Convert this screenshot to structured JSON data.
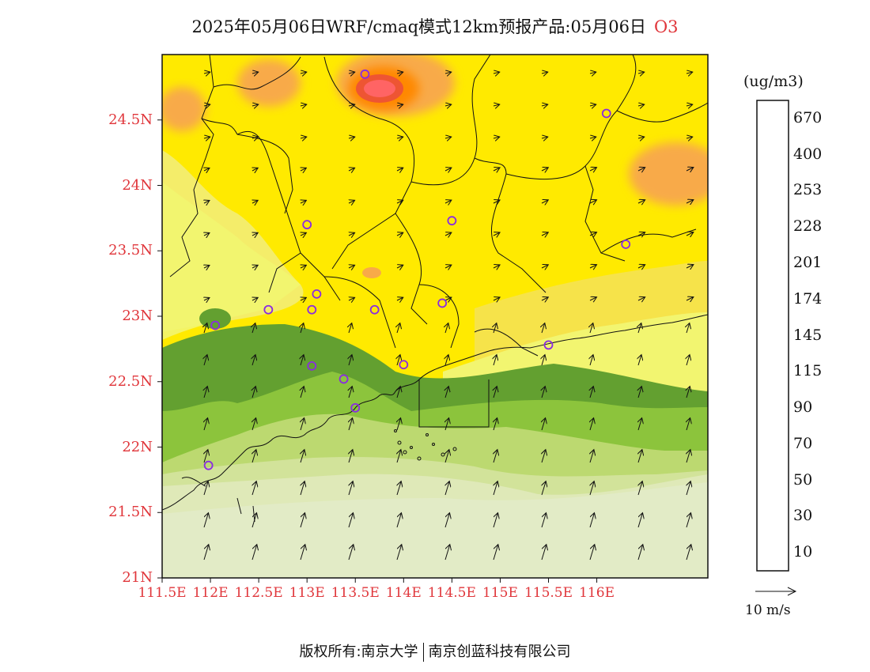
{
  "title": {
    "text": "2025年05月06日WRF/cmaq模式12km预报产品:05月06日",
    "pollutant": "O3"
  },
  "axes": {
    "lat_labels": [
      "24.5N",
      "24N",
      "23.5N",
      "23N",
      "22.5N",
      "22N",
      "21.5N",
      "21N"
    ],
    "lat_values": [
      24.5,
      24.0,
      23.5,
      23.0,
      22.5,
      22.0,
      21.5,
      21.0
    ],
    "lon_labels": [
      "111.5E",
      "112E",
      "112.5E",
      "113E",
      "113.5E",
      "114E",
      "114.5E",
      "115E",
      "115.5E",
      "116E"
    ],
    "lon_values": [
      111.5,
      112.0,
      112.5,
      113.0,
      113.5,
      114.0,
      114.5,
      115.0,
      115.5,
      116.0
    ],
    "lon_range": [
      111.5,
      117.15
    ],
    "lat_range": [
      21.0,
      25.0
    ]
  },
  "colorbar": {
    "unit": "(ug/m3)",
    "labels": [
      "670",
      "400",
      "253",
      "228",
      "201",
      "174",
      "145",
      "115",
      "90",
      "70",
      "50",
      "30",
      "10"
    ],
    "colors": [
      "#7b2fd6",
      "#9a35c9",
      "#b03060",
      "#c8187a",
      "#ff0000",
      "#ee1144",
      "#f8283c",
      "#ff6464",
      "#ee5533",
      "#ff8800",
      "#ffb030",
      "#f8aa48",
      "#fde000",
      "#fff000",
      "#f6e34a",
      "#f2f570",
      "#63a030",
      "#8cc43c",
      "#bcd970",
      "#d2e39a",
      "#dfe9b8",
      "#4a8fc6",
      "#6cb2e0",
      "#a4d8f2",
      "#d6eef8",
      "#ffffff"
    ]
  },
  "wind_legend": {
    "label": "10 m/s"
  },
  "markers": [
    {
      "lon": 113.6,
      "lat": 24.85
    },
    {
      "lon": 116.1,
      "lat": 24.55
    },
    {
      "lon": 113.0,
      "lat": 23.7
    },
    {
      "lon": 114.5,
      "lat": 23.73
    },
    {
      "lon": 116.3,
      "lat": 23.55
    },
    {
      "lon": 112.6,
      "lat": 23.05
    },
    {
      "lon": 113.1,
      "lat": 23.17
    },
    {
      "lon": 113.05,
      "lat": 23.05
    },
    {
      "lon": 113.7,
      "lat": 23.05
    },
    {
      "lon": 114.4,
      "lat": 23.1
    },
    {
      "lon": 112.05,
      "lat": 22.93
    },
    {
      "lon": 113.05,
      "lat": 22.62
    },
    {
      "lon": 113.38,
      "lat": 22.52
    },
    {
      "lon": 114.0,
      "lat": 22.63
    },
    {
      "lon": 115.5,
      "lat": 22.78
    },
    {
      "lon": 113.5,
      "lat": 22.3
    },
    {
      "lon": 111.98,
      "lat": 21.86
    }
  ],
  "copyright": {
    "left": "版权所有:南京大学",
    "right": "南京创蓝科技有限公司"
  }
}
